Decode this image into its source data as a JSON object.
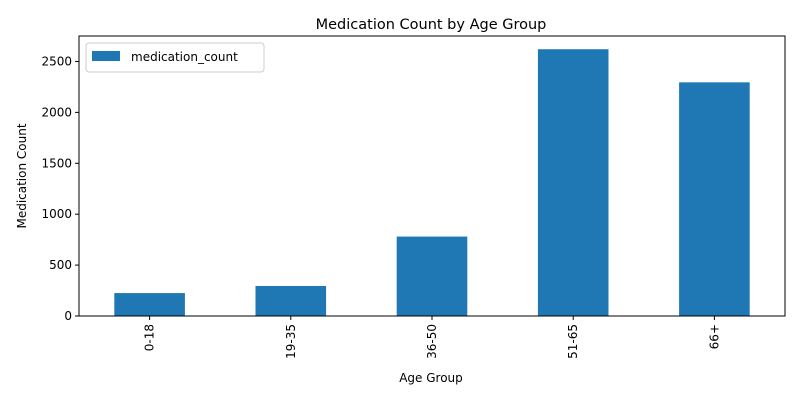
{
  "chart_data": {
    "type": "bar",
    "title": "Medication Count by Age Group",
    "xlabel": "Age Group",
    "ylabel": "Medication Count",
    "categories": [
      "0-18",
      "19-35",
      "36-50",
      "51-65",
      "66+"
    ],
    "series": [
      {
        "name": "medication_count",
        "values": [
          225,
          295,
          780,
          2620,
          2295
        ],
        "color": "#1f77b4"
      }
    ],
    "ylim": [
      0,
      2750
    ],
    "yticks": [
      0,
      500,
      1000,
      1500,
      2000,
      2500
    ],
    "grid": false,
    "legend": "top-left",
    "x_tick_rotation": 90
  }
}
